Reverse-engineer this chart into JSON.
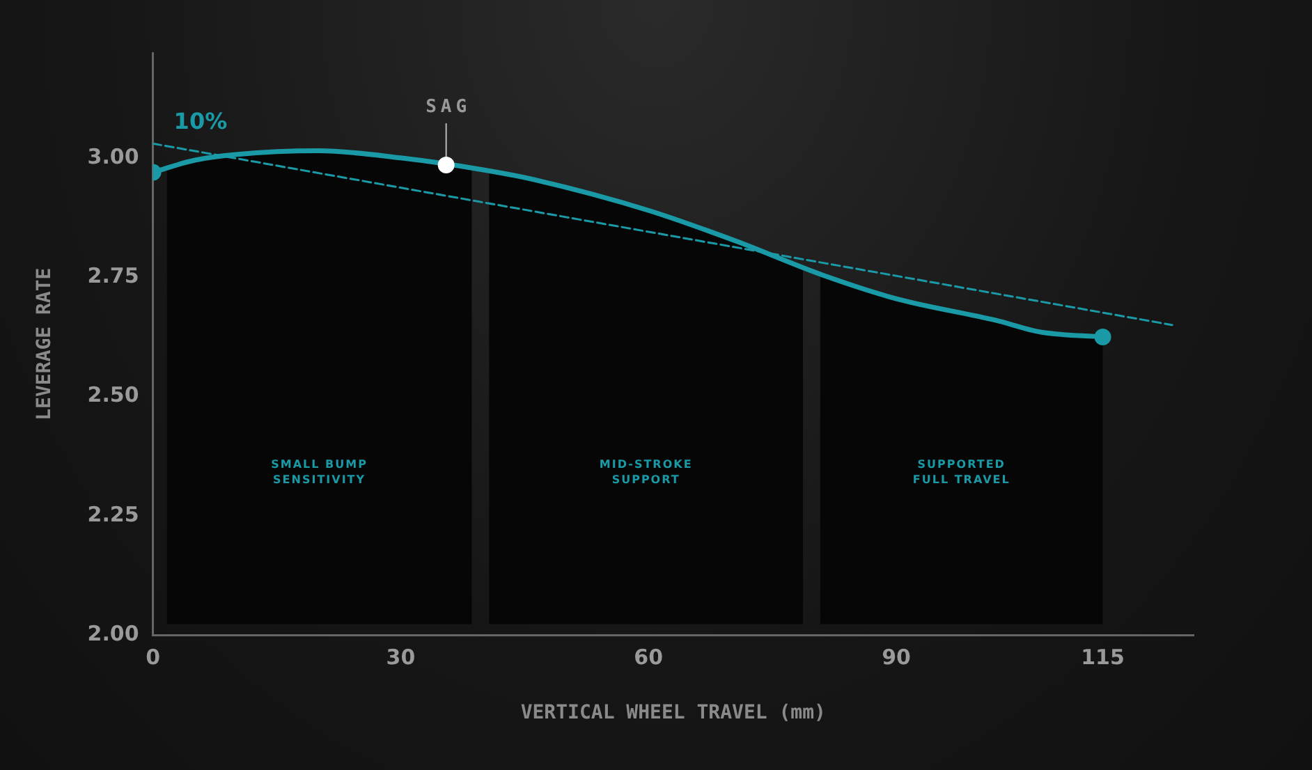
{
  "chart_data": {
    "type": "line",
    "xlabel": "VERTICAL WHEEL TRAVEL (mm)",
    "ylabel": "LEVERAGE RATE",
    "xlim": [
      0,
      126
    ],
    "ylim": [
      2,
      3.22
    ],
    "xticks": [
      0,
      30,
      60,
      90,
      115
    ],
    "yticks": [
      {
        "value": 2,
        "label": "2.00"
      },
      {
        "value": 2.25,
        "label": "2.25"
      },
      {
        "value": 2.5,
        "label": "2.50"
      },
      {
        "value": 2.75,
        "label": "2.75"
      },
      {
        "value": 3,
        "label": "3.00"
      }
    ],
    "grid": false,
    "legend": false,
    "series": [
      {
        "color": "#1a9aa6",
        "line_style": "solid",
        "marker": "none",
        "x": [
          0,
          5,
          10,
          20,
          30,
          40,
          46,
          60,
          70.7,
          81,
          90,
          102,
          107.5,
          115
        ],
        "values": [
          2.97,
          2.995,
          3.007,
          3.015,
          3.0,
          2.975,
          2.955,
          2.89,
          2.825,
          2.755,
          2.705,
          2.66,
          2.635,
          2.625
        ]
      },
      {
        "color": "#1a9aa6",
        "line_style": "dashed",
        "marker": "none",
        "x": [
          0,
          123.4
        ],
        "values": [
          3.03,
          2.65
        ]
      },
      {
        "type": "scatter",
        "color": "#1a9aa6",
        "marker": "circle",
        "x": [
          0,
          115
        ],
        "values": [
          2.97,
          2.625
        ]
      },
      {
        "type": "scatter",
        "color": "#ffffff",
        "marker": "circle",
        "x": [
          35.5
        ],
        "values": [
          2.985
        ]
      }
    ],
    "bands": [
      {
        "axis": "x",
        "from": 1.7,
        "to": 38.6,
        "label": "SMALL BUMP\nSENSITIVITY",
        "color": "#060606"
      },
      {
        "axis": "x",
        "from": 40.7,
        "to": 78.7,
        "label": "MID-STROKE\nSUPPORT",
        "color": "#060606"
      },
      {
        "axis": "x",
        "from": 80.8,
        "to": 115,
        "label": "SUPPORTED\nFULL TRAVEL",
        "color": "#060606"
      }
    ],
    "annotations": [
      "10%",
      {
        "text": "SAG",
        "x": 35.5,
        "y": 2.985
      }
    ]
  }
}
